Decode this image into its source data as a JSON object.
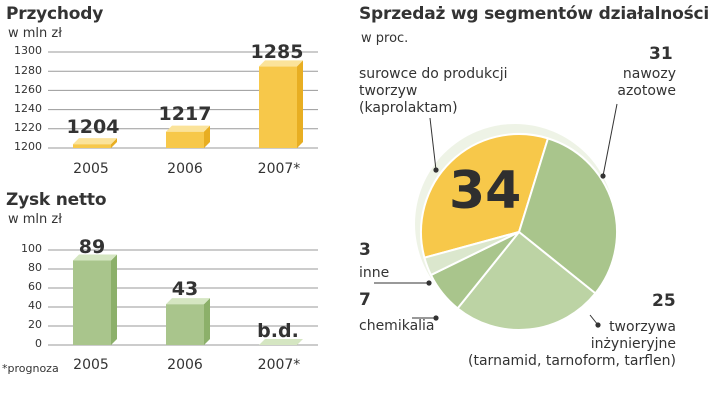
{
  "revenue": {
    "title": "Przychody",
    "unit": "w mln zł",
    "ticks": [
      "1300",
      "1280",
      "1260",
      "1240",
      "1220",
      "1200"
    ],
    "categories": [
      "2005",
      "2006",
      "2007*"
    ],
    "value_labels": [
      "1204",
      "1217",
      "1285"
    ]
  },
  "profit": {
    "title": "Zysk netto",
    "unit": "w mln zł",
    "ticks": [
      "100",
      "80",
      "60",
      "40",
      "20",
      "0"
    ],
    "categories": [
      "2005",
      "2006",
      "2007*"
    ],
    "value_labels": [
      "89",
      "43",
      "b.d."
    ]
  },
  "footnote": "*prognoza",
  "segments": {
    "title": "Sprzedaż wg segmentów działalności",
    "unit": "w proc.",
    "labels": {
      "surowce": [
        "surowce do produkcji",
        "tworzyw",
        "(kaprolaktam)"
      ],
      "nawozy": [
        "nawozy",
        "azotowe"
      ],
      "inne": [
        "inne"
      ],
      "chemikalia": [
        "chemikalia"
      ],
      "tworzywa": [
        "tworzywa",
        "inżynieryjne",
        "(tarnamid, tarnoform, tarflen)"
      ]
    },
    "values": {
      "surowce": "34",
      "nawozy": "31",
      "tworzywa": "25",
      "chemikalia": "7",
      "inne": "3"
    }
  },
  "colors": {
    "yellow": "#f7c84a",
    "yellow_light": "#fbe39a",
    "yellow_dark": "#e8ae22",
    "green": "#a9c58c",
    "green_light": "#d5e6c2",
    "green_dark": "#8cb06a",
    "pie_green_mid": "#bcd3a4",
    "pie_green_pale": "#dbe7cd",
    "grid": "#9a9a9a"
  },
  "chart_data": [
    {
      "type": "bar",
      "title": "Przychody",
      "ylabel": "w mln zł",
      "categories": [
        "2005",
        "2006",
        "2007*"
      ],
      "values": [
        1204,
        1217,
        1285
      ],
      "ylim": [
        1200,
        1300
      ]
    },
    {
      "type": "bar",
      "title": "Zysk netto",
      "ylabel": "w mln zł",
      "categories": [
        "2005",
        "2006",
        "2007*"
      ],
      "values": [
        89,
        43,
        null
      ],
      "ylim": [
        0,
        100
      ]
    },
    {
      "type": "pie",
      "title": "Sprzedaż wg segmentów działalności",
      "subtitle": "w proc.",
      "categories": [
        "surowce do produkcji tworzyw (kaprolaktam)",
        "nawozy azotowe",
        "tworzywa inżynieryjne (tarnamid, tarnoform, tarflen)",
        "chemikalia",
        "inne"
      ],
      "values": [
        34,
        31,
        25,
        7,
        3
      ]
    }
  ]
}
